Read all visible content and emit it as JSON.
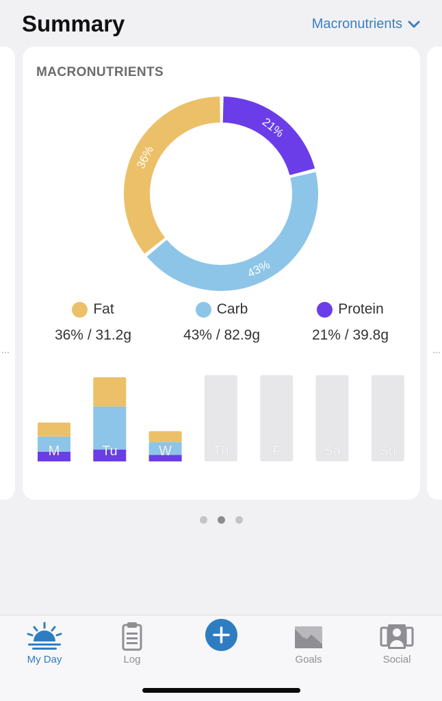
{
  "header": {
    "title": "Summary",
    "selector_label": "Macronutrients",
    "selector_icon": "chevron-down-icon"
  },
  "card": {
    "title": "MACRONUTRIENTS"
  },
  "colors": {
    "fat": "#ecc068",
    "carb": "#8dc5e8",
    "protein": "#6a3de8",
    "empty_bar": "#e7e7e9",
    "accent": "#2f7dc1"
  },
  "chart_data": [
    {
      "type": "pie",
      "categories": [
        "Fat",
        "Carb",
        "Protein"
      ],
      "values": [
        36,
        43,
        21
      ],
      "data_labels": [
        "36%",
        "43%",
        "21%"
      ],
      "unit": "%",
      "donut": true
    },
    {
      "type": "bar",
      "stacked": true,
      "categories": [
        "M",
        "Tu",
        "W",
        "Th",
        "F",
        "Sa",
        "Su"
      ],
      "series": [
        {
          "name": "Protein",
          "values": [
            9,
            11,
            6,
            0,
            0,
            0,
            0
          ]
        },
        {
          "name": "Carb",
          "values": [
            14,
            40,
            12,
            0,
            0,
            0,
            0
          ]
        },
        {
          "name": "Fat",
          "values": [
            13,
            27,
            10,
            0,
            0,
            0,
            0
          ]
        }
      ],
      "ylim": [
        0,
        80
      ],
      "placeholder_max": 80
    }
  ],
  "legend": [
    {
      "name": "Fat",
      "value": "36% / 31.2g",
      "color": "#ecc068"
    },
    {
      "name": "Carb",
      "value": "43% / 82.9g",
      "color": "#8dc5e8"
    },
    {
      "name": "Protein",
      "value": "21% / 39.8g",
      "color": "#6a3de8"
    }
  ],
  "pager": {
    "pages": 3,
    "active": 2
  },
  "tabbar": {
    "tabs": [
      {
        "label": "My Day",
        "icon": "sunrise-icon",
        "active": true
      },
      {
        "label": "Log",
        "icon": "clipboard-icon",
        "active": false
      },
      {
        "label": "Goals",
        "icon": "mountain-icon",
        "active": false
      },
      {
        "label": "Social",
        "icon": "people-icon",
        "active": false
      }
    ],
    "add_icon": "plus-icon"
  }
}
